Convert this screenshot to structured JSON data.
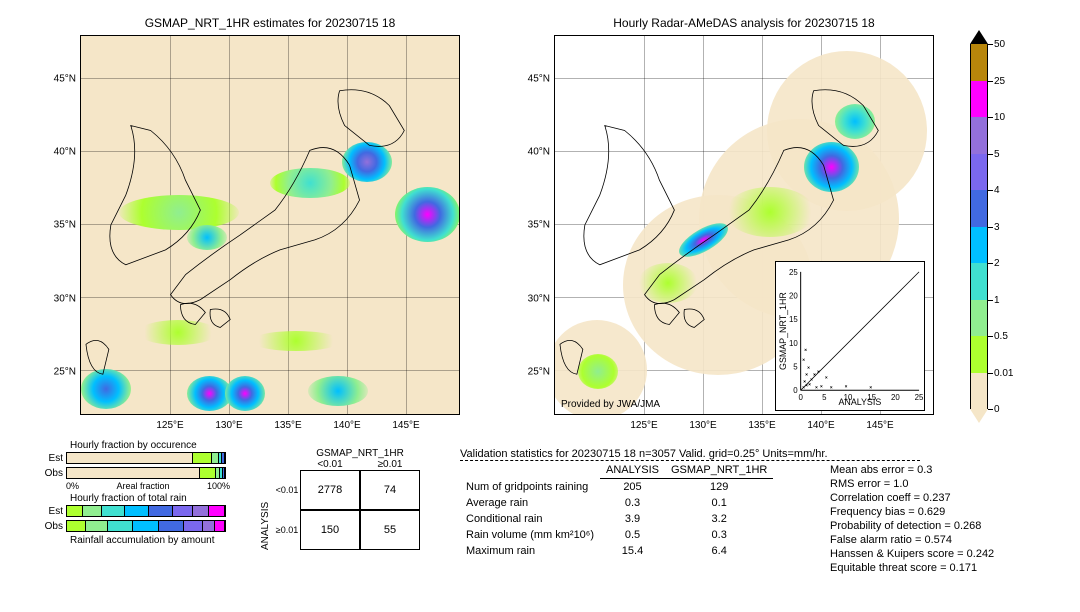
{
  "left_map": {
    "title": "GSMAP_NRT_1HR estimates for 20230715 18",
    "lon_range": [
      118,
      150
    ],
    "lat_range": [
      22,
      48
    ],
    "x_ticks": [
      "125°E",
      "130°E",
      "135°E",
      "140°E",
      "145°E"
    ],
    "x_tick_vals": [
      125,
      130,
      135,
      140,
      145
    ],
    "y_ticks": [
      "25°N",
      "30°N",
      "35°N",
      "40°N",
      "45°N"
    ],
    "y_tick_vals": [
      25,
      30,
      35,
      40,
      45
    ],
    "background": "#f5e6c8"
  },
  "right_map": {
    "title": "Hourly Radar-AMeDAS analysis for 20230715 18",
    "lon_range": [
      118,
      150
    ],
    "lat_range": [
      22,
      48
    ],
    "x_ticks": [
      "125°E",
      "130°E",
      "135°E",
      "140°E",
      "145°E"
    ],
    "x_tick_vals": [
      125,
      130,
      135,
      140,
      145
    ],
    "y_ticks": [
      "25°N",
      "30°N",
      "35°N",
      "40°N",
      "45°N"
    ],
    "y_tick_vals": [
      25,
      30,
      35,
      40,
      45
    ],
    "background": "#ffffff",
    "provided": "Provided by JWA/JMA"
  },
  "colorbar": {
    "ticks": [
      "50",
      "25",
      "10",
      "5",
      "4",
      "3",
      "2",
      "1",
      "0.5",
      "0.01",
      "0"
    ],
    "colors": [
      "#b8860b",
      "#ff00ff",
      "#9370db",
      "#7b68ee",
      "#4169e1",
      "#00bfff",
      "#40e0d0",
      "#90ee90",
      "#adff2f",
      "#f5e6c8"
    ]
  },
  "inset": {
    "xlabel": "ANALYSIS",
    "ylabel": "GSMAP_NRT_1HR",
    "xlim": [
      0,
      25
    ],
    "ylim": [
      0,
      25
    ],
    "ticks": [
      0,
      5,
      10,
      15,
      20,
      25
    ]
  },
  "fractions": {
    "title1": "Hourly fraction by occurence",
    "title2": "Hourly fraction of total rain",
    "title3": "Rainfall accumulation by amount",
    "axis_label": "Areal fraction",
    "axis_0": "0%",
    "axis_100": "100%",
    "rows": [
      "Est",
      "Obs",
      "Est",
      "Obs"
    ],
    "occurrence_est": [
      {
        "c": "#f5e6c8",
        "w": 80
      },
      {
        "c": "#adff2f",
        "w": 12
      },
      {
        "c": "#90ee90",
        "w": 4
      },
      {
        "c": "#40e0d0",
        "w": 2
      },
      {
        "c": "#4169e1",
        "w": 2
      }
    ],
    "occurrence_obs": [
      {
        "c": "#f5e6c8",
        "w": 84
      },
      {
        "c": "#adff2f",
        "w": 10
      },
      {
        "c": "#90ee90",
        "w": 3
      },
      {
        "c": "#40e0d0",
        "w": 2
      },
      {
        "c": "#4169e1",
        "w": 1
      }
    ],
    "total_est": [
      {
        "c": "#adff2f",
        "w": 10
      },
      {
        "c": "#90ee90",
        "w": 12
      },
      {
        "c": "#40e0d0",
        "w": 15
      },
      {
        "c": "#00bfff",
        "w": 15
      },
      {
        "c": "#4169e1",
        "w": 15
      },
      {
        "c": "#7b68ee",
        "w": 13
      },
      {
        "c": "#9370db",
        "w": 10
      },
      {
        "c": "#ff00ff",
        "w": 10
      }
    ],
    "total_obs": [
      {
        "c": "#adff2f",
        "w": 12
      },
      {
        "c": "#90ee90",
        "w": 14
      },
      {
        "c": "#40e0d0",
        "w": 16
      },
      {
        "c": "#00bfff",
        "w": 16
      },
      {
        "c": "#4169e1",
        "w": 16
      },
      {
        "c": "#7b68ee",
        "w": 12
      },
      {
        "c": "#9370db",
        "w": 8
      },
      {
        "c": "#ff00ff",
        "w": 6
      }
    ]
  },
  "contingency": {
    "col_head": "GSMAP_NRT_1HR",
    "row_head": "ANALYSIS",
    "col_labels": [
      "<0.01",
      "≥0.01"
    ],
    "row_labels": [
      "<0.01",
      "≥0.01"
    ],
    "cells": [
      [
        "2778",
        "74"
      ],
      [
        "150",
        "55"
      ]
    ]
  },
  "stats_header": "Validation statistics for 20230715 18  n=3057 Valid. grid=0.25°  Units=mm/hr.",
  "stats_cols": [
    "ANALYSIS",
    "GSMAP_NRT_1HR"
  ],
  "stats_rows": [
    {
      "label": "Num of gridpoints raining",
      "a": "205",
      "b": "129"
    },
    {
      "label": "Average rain",
      "a": "0.3",
      "b": "0.1"
    },
    {
      "label": "Conditional rain",
      "a": "3.9",
      "b": "3.2"
    },
    {
      "label": "Rain volume (mm km²10⁶)",
      "a": "0.5",
      "b": "0.3"
    },
    {
      "label": "Maximum rain",
      "a": "15.4",
      "b": "6.4"
    }
  ],
  "stats_right": [
    "Mean abs error =   0.3",
    "RMS error =   1.0",
    "Correlation coeff =  0.237",
    "Frequency bias =  0.629",
    "Probability of detection =  0.268",
    "False alarm ratio =  0.574",
    "Hanssen & Kuipers score =  0.242",
    "Equitable threat score =  0.171"
  ]
}
